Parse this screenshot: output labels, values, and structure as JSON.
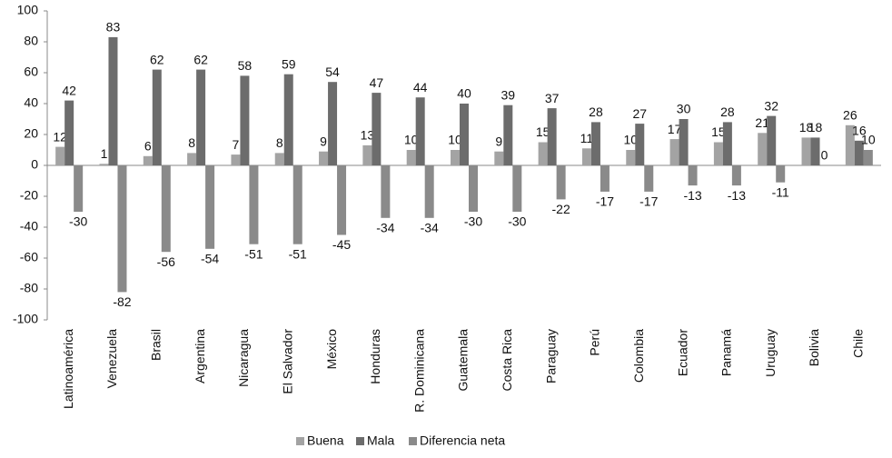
{
  "chart_data": {
    "type": "bar",
    "categories": [
      "Latinoamérica",
      "Venezuela",
      "Brasil",
      "Argentina",
      "Nicaragua",
      "El Salvador",
      "México",
      "Honduras",
      "R. Dominicana",
      "Guatemala",
      "Costa Rica",
      "Paraguay",
      "Perú",
      "Colombia",
      "Ecuador",
      "Panamá",
      "Uruguay",
      "Bolivia",
      "Chile"
    ],
    "series": [
      {
        "name": "Buena",
        "color": "#a3a3a3",
        "values": [
          12,
          1,
          6,
          8,
          7,
          8,
          9,
          13,
          10,
          10,
          9,
          15,
          11,
          10,
          17,
          15,
          21,
          18,
          26
        ]
      },
      {
        "name": "Mala",
        "color": "#6c6c6c",
        "values": [
          42,
          83,
          62,
          62,
          58,
          59,
          54,
          47,
          44,
          40,
          39,
          37,
          28,
          27,
          30,
          28,
          32,
          18,
          16
        ]
      },
      {
        "name": "Diferencia neta",
        "color": "#8a8a8a",
        "values": [
          -30,
          -82,
          -56,
          -54,
          -51,
          -51,
          -45,
          -34,
          -34,
          -30,
          -30,
          -22,
          -17,
          -17,
          -13,
          -13,
          -11,
          0,
          10
        ]
      }
    ],
    "ylim": [
      -100,
      100
    ],
    "yticks": [
      -100,
      -80,
      -60,
      -40,
      -20,
      0,
      20,
      40,
      60,
      80,
      100
    ],
    "grid": false,
    "legend": "bottom"
  }
}
